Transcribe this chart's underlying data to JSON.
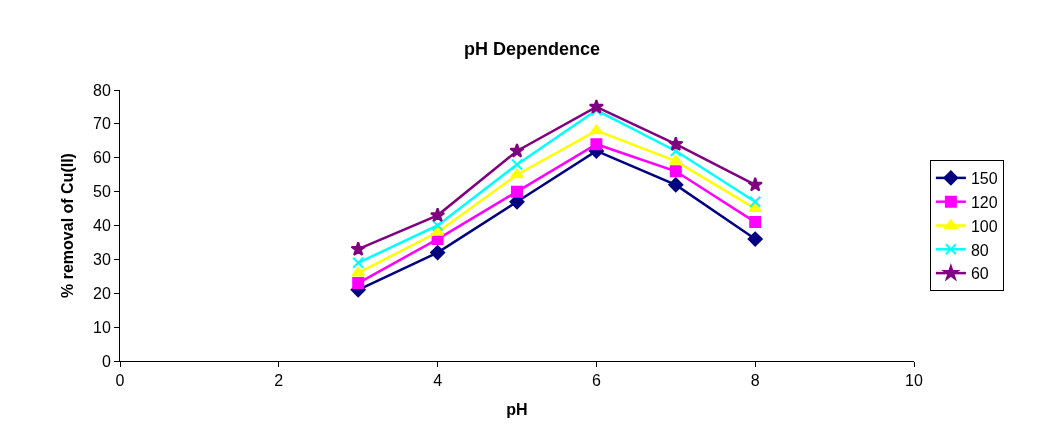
{
  "chart_data": {
    "type": "line",
    "title": "pH Dependence",
    "xlabel": "pH",
    "ylabel": "% removal of Cu(II)",
    "x": [
      3,
      4,
      5,
      6,
      7,
      8
    ],
    "xlim": [
      0,
      10
    ],
    "xticks": [
      0,
      2,
      4,
      6,
      8,
      10
    ],
    "ylim": [
      0,
      80
    ],
    "yticks": [
      0,
      10,
      20,
      30,
      40,
      50,
      60,
      70,
      80
    ],
    "legend": "right",
    "series": [
      {
        "name": "150",
        "color": "#000080",
        "marker": "diamond",
        "values": [
          21,
          32,
          47,
          62,
          52,
          36
        ]
      },
      {
        "name": "120",
        "color": "#ff00ff",
        "marker": "square",
        "values": [
          23,
          36,
          50,
          64,
          56,
          41
        ]
      },
      {
        "name": "100",
        "color": "#ffff00",
        "marker": "triangle",
        "values": [
          26,
          38,
          55,
          68,
          59,
          45
        ]
      },
      {
        "name": "80",
        "color": "#00ffff",
        "marker": "cross",
        "values": [
          29,
          40,
          58,
          74,
          62,
          47
        ]
      },
      {
        "name": "60",
        "color": "#800080",
        "marker": "star",
        "values": [
          33,
          43,
          62,
          75,
          64,
          52
        ]
      }
    ]
  }
}
